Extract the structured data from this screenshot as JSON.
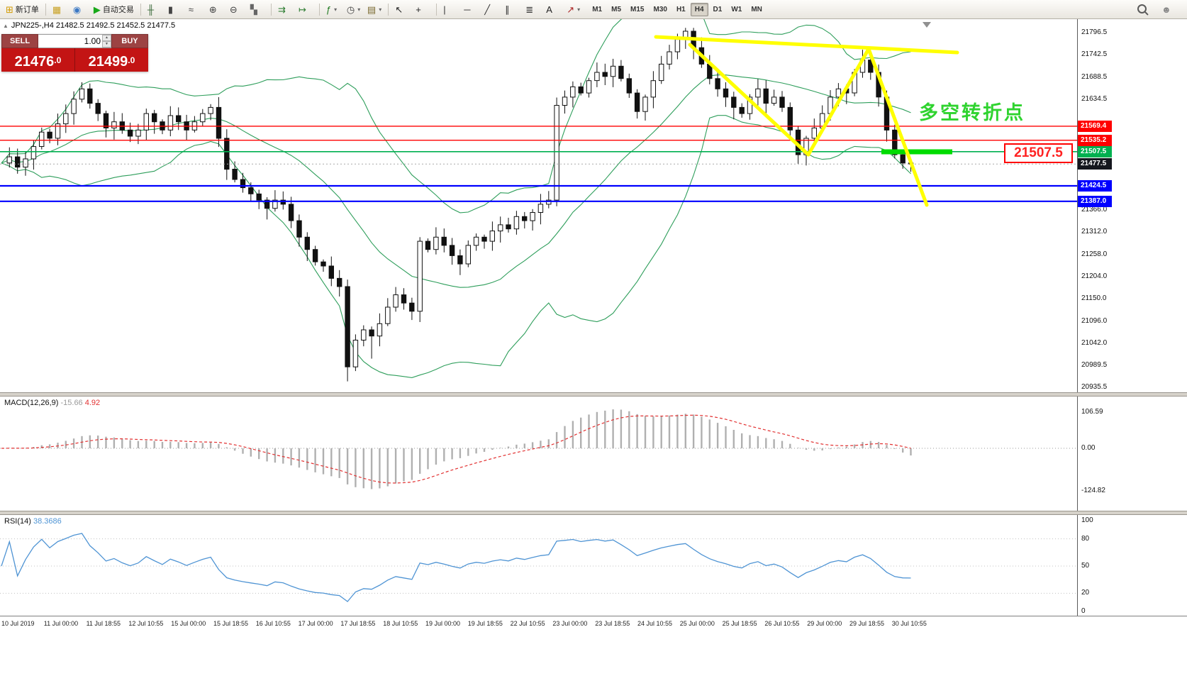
{
  "icons": {
    "oct_toggle": "▲",
    "spinner_up": "▲",
    "spinner_down": "▼",
    "community": "☻",
    "dropdown_caret": "▾"
  },
  "colors": {
    "bull": "#ffffff",
    "bear": "#111111",
    "bollinger": "#2e9e5b",
    "macd_hist": "#b0b0b0",
    "macd_signal": "#e23131",
    "rsi_line": "#4f94d4",
    "annotation_yellow": "#ffff00",
    "annotation_green": "#2fd32f",
    "level_red": "#ff0000",
    "level_blue": "#0000ff",
    "level_green": "#00b050",
    "price_panel_red": "#c31414"
  },
  "toolbar": {
    "items": [
      {
        "type": "button",
        "name": "new-order-button",
        "icon": "new-order-icon",
        "glyph": "⊞",
        "glyph_color": "#d29a00",
        "label": "新订单"
      },
      {
        "type": "sep"
      },
      {
        "type": "button",
        "name": "chart-windows-button",
        "icon": "chart-window-icon",
        "glyph": "▦",
        "glyph_color": "#c8a020"
      },
      {
        "type": "button",
        "name": "profiles-button",
        "icon": "profiles-icon",
        "glyph": "◉",
        "glyph_color": "#3b78c4"
      },
      {
        "type": "button",
        "name": "auto-trading-button",
        "icon": "play-icon",
        "glyph": "▶",
        "glyph_color": "#18a818",
        "label": "自动交易"
      },
      {
        "type": "sep"
      },
      {
        "type": "button",
        "name": "bar-chart-style-button",
        "icon": "ohlc-bars-icon",
        "glyph": "╫",
        "glyph_color": "#3a6a3a"
      },
      {
        "type": "button",
        "name": "candlestick-style-button",
        "icon": "candlestick-icon",
        "glyph": "▮",
        "glyph_color": "#444444"
      },
      {
        "type": "button",
        "name": "line-chart-style-button",
        "icon": "line-chart-icon",
        "glyph": "≈",
        "glyph_color": "#444444"
      },
      {
        "type": "button",
        "name": "zoom-in-button",
        "icon": "zoom-in-icon",
        "glyph": "⊕",
        "glyph_color": "#444444"
      },
      {
        "type": "button",
        "name": "zoom-out-button",
        "icon": "zoom-out-icon",
        "glyph": "⊖",
        "glyph_color": "#444444"
      },
      {
        "type": "button",
        "name": "tile-windows-button",
        "icon": "tile-windows-icon",
        "glyph": "▚",
        "glyph_color": "#666666"
      },
      {
        "type": "sep"
      },
      {
        "type": "button",
        "name": "auto-scroll-button",
        "icon": "auto-scroll-icon",
        "glyph": "⇉",
        "glyph_color": "#2e7d32"
      },
      {
        "type": "button",
        "name": "chart-shift-button",
        "icon": "chart-shift-icon",
        "glyph": "↦",
        "glyph_color": "#2e7d32"
      },
      {
        "type": "sep"
      },
      {
        "type": "button",
        "name": "indicators-button",
        "icon": "indicators-icon",
        "glyph": "ƒ",
        "glyph_color": "#1f7a1f",
        "caret": true
      },
      {
        "type": "button",
        "name": "periods-button",
        "icon": "clock-icon",
        "glyph": "◷",
        "glyph_color": "#444444",
        "caret": true
      },
      {
        "type": "button",
        "name": "templates-button",
        "icon": "template-icon",
        "glyph": "▤",
        "glyph_color": "#7a6a30",
        "caret": true
      },
      {
        "type": "sep"
      },
      {
        "type": "button",
        "name": "cursor-button",
        "icon": "cursor-icon",
        "glyph": "↖",
        "glyph_color": "#222222"
      },
      {
        "type": "button",
        "name": "crosshair-button",
        "icon": "crosshair-icon",
        "glyph": "+",
        "glyph_color": "#222222"
      },
      {
        "type": "sep"
      },
      {
        "type": "button",
        "name": "vertical-line-button",
        "icon": "vertical-line-icon",
        "glyph": "|",
        "glyph_color": "#333333"
      },
      {
        "type": "button",
        "name": "horizontal-line-button",
        "icon": "horizontal-line-icon",
        "glyph": "─",
        "glyph_color": "#333333"
      },
      {
        "type": "button",
        "name": "trendline-button",
        "icon": "trendline-icon",
        "glyph": "╱",
        "glyph_color": "#333333"
      },
      {
        "type": "button",
        "name": "channel-button",
        "icon": "channel-icon",
        "glyph": "∥",
        "glyph_color": "#333333"
      },
      {
        "type": "button",
        "name": "fibonacci-button",
        "icon": "fibonacci-icon",
        "glyph": "≣",
        "glyph_color": "#333333"
      },
      {
        "type": "button",
        "name": "text-tool-button",
        "icon": "text-icon",
        "glyph": "A",
        "glyph_color": "#222222"
      },
      {
        "type": "button",
        "name": "arrows-tool-button",
        "icon": "arrow-object-icon",
        "glyph": "↗",
        "glyph_color": "#aa2222",
        "caret": true
      }
    ],
    "timeframes": [
      "M1",
      "M5",
      "M15",
      "M30",
      "H1",
      "H4",
      "D1",
      "W1",
      "MN"
    ],
    "active_timeframe": "H4"
  },
  "chart": {
    "symbol_info": "JPN225-,H4  21482.5 21492.5 21452.5 21477.5",
    "trade_panel": {
      "sell_label": "SELL",
      "buy_label": "BUY",
      "volume": "1.00",
      "sell_price_main": "21476",
      "sell_price_dec": ".0",
      "buy_price_main": "21499",
      "buy_price_dec": ".0"
    },
    "annotation_text": "多空转折点",
    "price_callout": "21507.5",
    "levels": [
      {
        "value": "21569.4",
        "price": 21569.4,
        "color": "#ff0000",
        "width": 1.4
      },
      {
        "value": "21535.2",
        "price": 21535.2,
        "color": "#ff0000",
        "width": 1.4
      },
      {
        "value": "21507.5",
        "price": 21507.5,
        "color": "#00b050",
        "width": 1.6
      },
      {
        "value": "21424.5",
        "price": 21424.5,
        "color": "#0000ff",
        "width": 2.2
      },
      {
        "value": "21387.0",
        "price": 21387.0,
        "color": "#0000ff",
        "width": 2.2
      }
    ],
    "current_price": {
      "value": "21477.5",
      "price": 21477.5
    },
    "axis_ticks": [
      "21796.5",
      "21742.5",
      "21688.5",
      "21634.5",
      "21366.0",
      "21312.0",
      "21258.0",
      "21204.0",
      "21150.0",
      "21096.0",
      "21042.0",
      "20989.5",
      "20935.5"
    ]
  },
  "macd": {
    "label": "MACD(12,26,9)",
    "value1": "-15.66",
    "value2": "4.92",
    "axis": [
      "106.59",
      "0.00",
      "-124.82"
    ]
  },
  "rsi": {
    "label": "RSI(14)",
    "value": "38.3686",
    "axis": [
      "100",
      "80",
      "50",
      "20",
      "0"
    ],
    "levels": [
      80,
      50,
      20
    ]
  },
  "time_axis": [
    "10 Jul 2019",
    "11 Jul 00:00",
    "11 Jul 18:55",
    "12 Jul 10:55",
    "15 Jul 00:00",
    "15 Jul 18:55",
    "16 Jul 10:55",
    "17 Jul 00:00",
    "17 Jul 18:55",
    "18 Jul 10:55",
    "19 Jul 00:00",
    "19 Jul 18:55",
    "22 Jul 10:55",
    "23 Jul 00:00",
    "23 Jul 18:55",
    "24 Jul 10:55",
    "25 Jul 00:00",
    "25 Jul 18:55",
    "26 Jul 10:55",
    "29 Jul 00:00",
    "29 Jul 18:55",
    "30 Jul 10:55"
  ],
  "chart_data": {
    "type": "candlestick",
    "symbol": "JPN225-",
    "timeframe": "H4",
    "ohlc_display": {
      "open": 21482.5,
      "high": 21492.5,
      "low": 21452.5,
      "close": 21477.5
    },
    "price_range": [
      20935.5,
      21796.5
    ],
    "closes": [
      21480,
      21495,
      21470,
      21490,
      21520,
      21555,
      21540,
      21575,
      21600,
      21635,
      21660,
      21625,
      21600,
      21565,
      21580,
      21560,
      21545,
      21560,
      21600,
      21580,
      21560,
      21595,
      21580,
      21560,
      21580,
      21600,
      21615,
      21540,
      21465,
      21440,
      21420,
      21405,
      21390,
      21370,
      21390,
      21380,
      21340,
      21300,
      21270,
      21240,
      21230,
      21200,
      21180,
      20985,
      21050,
      21075,
      21060,
      21090,
      21130,
      21160,
      21140,
      21120,
      21290,
      21270,
      21300,
      21280,
      21255,
      21235,
      21280,
      21300,
      21290,
      21315,
      21330,
      21320,
      21350,
      21340,
      21360,
      21380,
      21390,
      21620,
      21640,
      21665,
      21650,
      21680,
      21700,
      21690,
      21715,
      21685,
      21650,
      21605,
      21640,
      21680,
      21720,
      21750,
      21780,
      21800,
      21760,
      21720,
      21685,
      21660,
      21640,
      21615,
      21600,
      21640,
      21660,
      21625,
      21640,
      21615,
      21560,
      21500,
      21540,
      21565,
      21600,
      21640,
      21660,
      21650,
      21700,
      21730,
      21700,
      21640,
      21560,
      21500,
      21480,
      21477.5
    ],
    "wick_overrides": {
      "43": {
        "low": 20950
      },
      "46": {
        "low": 21005
      },
      "85": {
        "high": 21808
      },
      "99": {
        "low": 21478
      }
    },
    "indicators": {
      "bollinger": {
        "period": 20,
        "deviation": 2
      },
      "macd": {
        "fast": 12,
        "slow": 26,
        "signal": 9,
        "current_main": -15.66,
        "current_signal": 4.92
      },
      "rsi": {
        "period": 14,
        "current": 38.3686
      }
    },
    "horizontal_levels": [
      21569.4,
      21535.2,
      21507.5,
      21424.5,
      21387.0
    ],
    "annotations": {
      "green_text": "多空转折点",
      "red_box_price": "21507.5"
    }
  }
}
